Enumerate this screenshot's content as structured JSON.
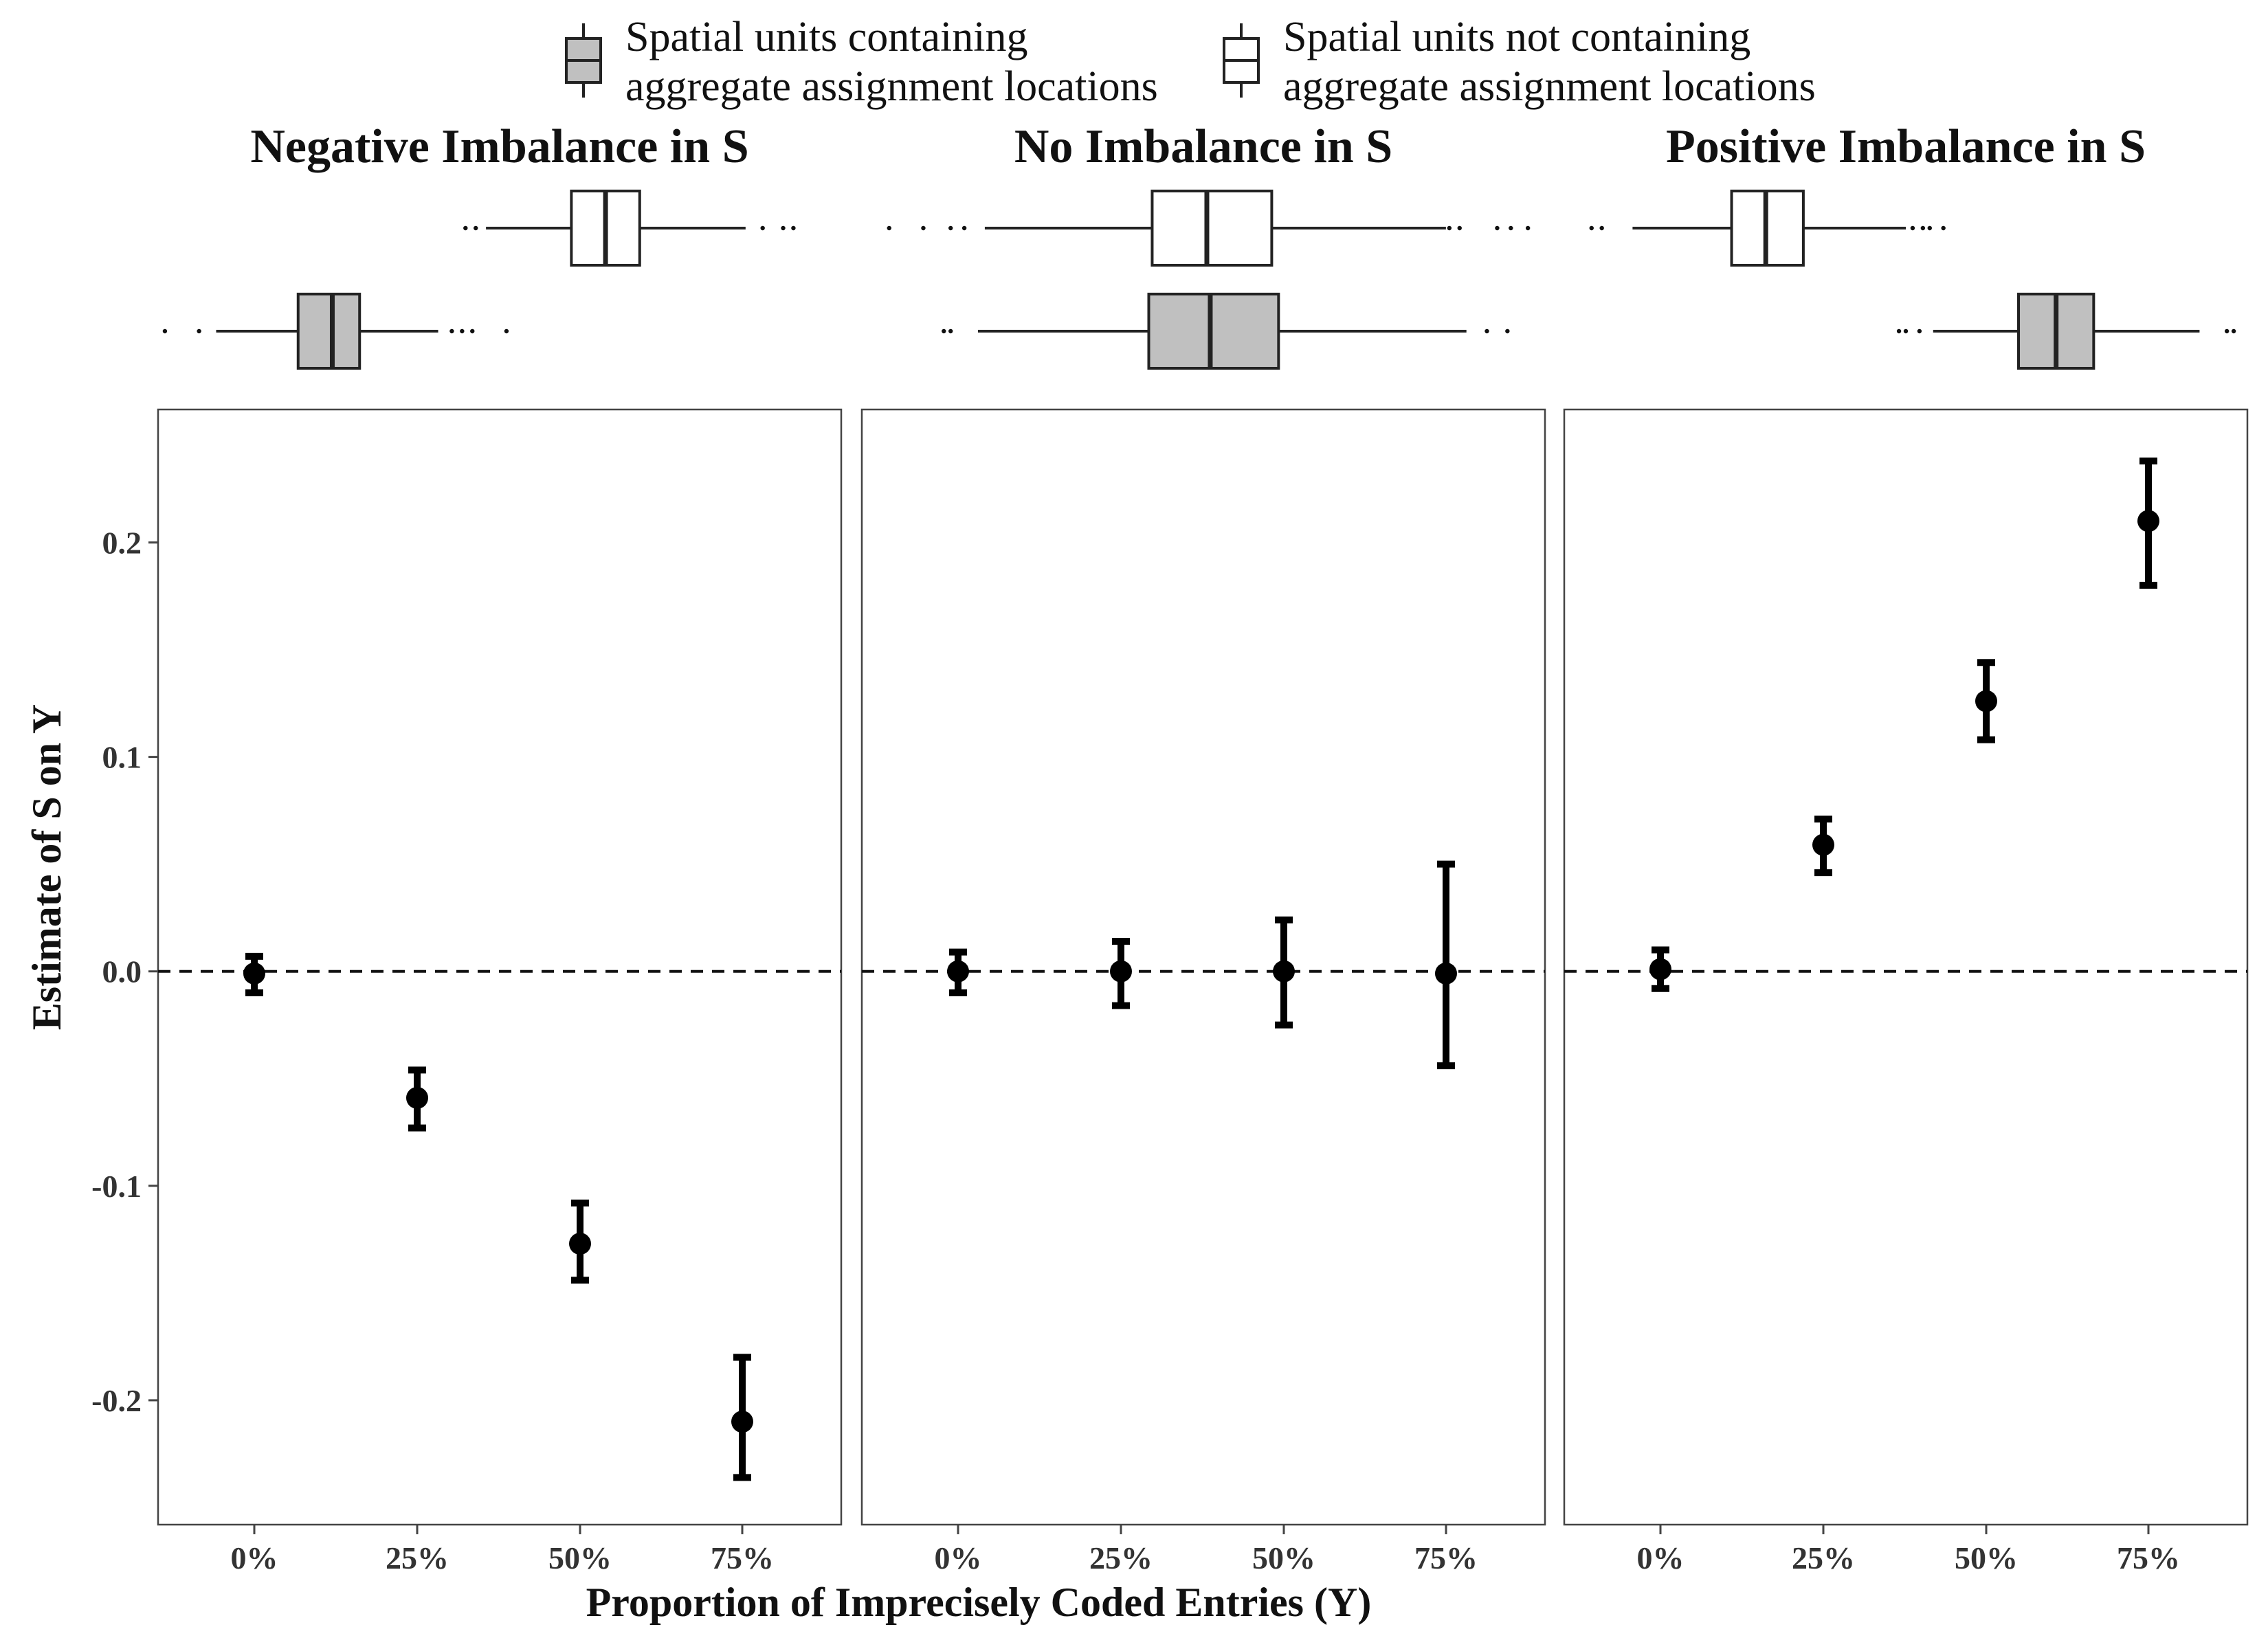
{
  "legend": {
    "items": [
      {
        "lines": [
          "Spatial units containing",
          "aggregate assignment locations"
        ],
        "fill": "#c0c0c0"
      },
      {
        "lines": [
          "Spatial units not containing",
          "aggregate assignment locations"
        ],
        "fill": "#ffffff"
      }
    ]
  },
  "chart_data": {
    "type": "scatter",
    "xlabel": "Proportion of Imprecisely Coded Entries (Y)",
    "ylabel": "Estimate of S on Y",
    "x_ticks": [
      "0%",
      "25%",
      "50%",
      "75%"
    ],
    "y_ticks": [
      -0.2,
      -0.1,
      0.0,
      0.1,
      0.2
    ],
    "y_tick_labels": [
      "-0.2",
      "-0.1",
      "0.0",
      "0.1",
      "0.2"
    ],
    "ylim": [
      -0.258,
      0.262
    ],
    "reference_line": {
      "y": 0.0,
      "style": "dashed"
    },
    "grid": false,
    "panels": [
      {
        "title": "Negative Imbalance in S",
        "points": [
          {
            "x": "0%",
            "y": -0.001,
            "lo": -0.01,
            "hi": 0.007
          },
          {
            "x": "25%",
            "y": -0.059,
            "lo": -0.073,
            "hi": -0.046
          },
          {
            "x": "50%",
            "y": -0.127,
            "lo": -0.144,
            "hi": -0.108
          },
          {
            "x": "75%",
            "y": -0.21,
            "lo": -0.236,
            "hi": -0.18
          }
        ],
        "boxplots": {
          "containing": {
            "whisker_lo": 0.085,
            "q1": 0.205,
            "median": 0.255,
            "q3": 0.295,
            "whisker_hi": 0.41,
            "outliers": [
              0.01,
              0.06,
              0.43,
              0.445,
              0.46,
              0.51
            ]
          },
          "not_containing": {
            "whisker_lo": 0.48,
            "q1": 0.605,
            "median": 0.655,
            "q3": 0.705,
            "whisker_hi": 0.86,
            "outliers": [
              0.45,
              0.465,
              0.885,
              0.915,
              0.93
            ]
          }
        }
      },
      {
        "title": "No Imbalance in S",
        "points": [
          {
            "x": "0%",
            "y": 0.0,
            "lo": -0.01,
            "hi": 0.009
          },
          {
            "x": "25%",
            "y": 0.0,
            "lo": -0.016,
            "hi": 0.014
          },
          {
            "x": "50%",
            "y": 0.0,
            "lo": -0.025,
            "hi": 0.024
          },
          {
            "x": "75%",
            "y": -0.001,
            "lo": -0.044,
            "hi": 0.05
          }
        ],
        "boxplots": {
          "containing": {
            "whisker_lo": 0.17,
            "q1": 0.42,
            "median": 0.51,
            "q3": 0.61,
            "whisker_hi": 0.885,
            "outliers": [
              0.12,
              0.13,
              0.915,
              0.945
            ]
          },
          "not_containing": {
            "whisker_lo": 0.18,
            "q1": 0.425,
            "median": 0.505,
            "q3": 0.6,
            "whisker_hi": 0.855,
            "outliers": [
              0.04,
              0.09,
              0.13,
              0.15,
              0.86,
              0.875,
              0.93,
              0.95,
              0.975
            ]
          }
        }
      },
      {
        "title": "Positive Imbalance in S",
        "points": [
          {
            "x": "0%",
            "y": 0.001,
            "lo": -0.008,
            "hi": 0.01
          },
          {
            "x": "25%",
            "y": 0.059,
            "lo": 0.046,
            "hi": 0.071
          },
          {
            "x": "50%",
            "y": 0.126,
            "lo": 0.108,
            "hi": 0.144
          },
          {
            "x": "75%",
            "y": 0.21,
            "lo": 0.18,
            "hi": 0.238
          }
        ],
        "boxplots": {
          "containing": {
            "whisker_lo": 0.54,
            "q1": 0.665,
            "median": 0.72,
            "q3": 0.775,
            "whisker_hi": 0.93,
            "outliers": [
              0.49,
              0.5,
              0.52,
              0.97,
              0.98
            ]
          },
          "not_containing": {
            "whisker_lo": 0.1,
            "q1": 0.245,
            "median": 0.295,
            "q3": 0.35,
            "whisker_hi": 0.5,
            "outliers": [
              0.04,
              0.055,
              0.51,
              0.525,
              0.535,
              0.555
            ]
          }
        }
      }
    ]
  }
}
